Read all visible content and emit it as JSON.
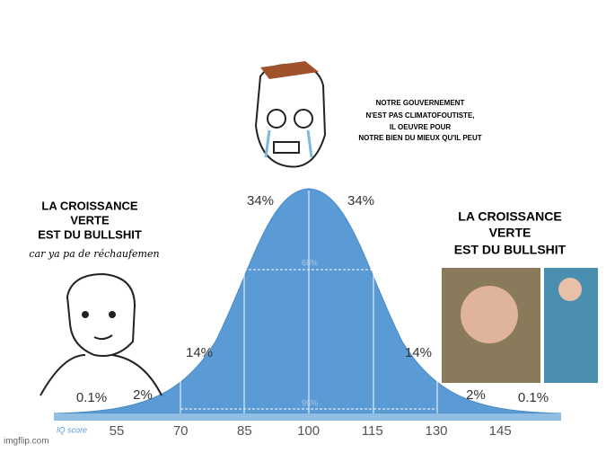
{
  "top_caption": {
    "lines": [
      "NOTRE GOUVERNEMENT",
      "N'EST PAS CLIMATOFOUTISTE,",
      "IL OEUVRE POUR",
      "NOTRE BIEN DU MIEUX QU'IL PEUT"
    ]
  },
  "left_caption": {
    "lines": [
      "LA CROISSANCE",
      "VERTE",
      "EST DU BULLSHIT"
    ],
    "note": "car ya pa de réchaufemen"
  },
  "right_caption": {
    "lines": [
      "LA CROISSANCE",
      "VERTE",
      "EST DU BULLSHIT"
    ]
  },
  "curve": {
    "percentages": [
      "0.1%",
      "2%",
      "14%",
      "34%",
      "34%",
      "14%",
      "2%",
      "0.1%"
    ],
    "inner_labels": [
      "68%",
      "95%"
    ]
  },
  "axis": {
    "title": "IQ score",
    "ticks": [
      "55",
      "70",
      "85",
      "100",
      "115",
      "130",
      "145"
    ]
  },
  "watermark": "imgflip.com"
}
